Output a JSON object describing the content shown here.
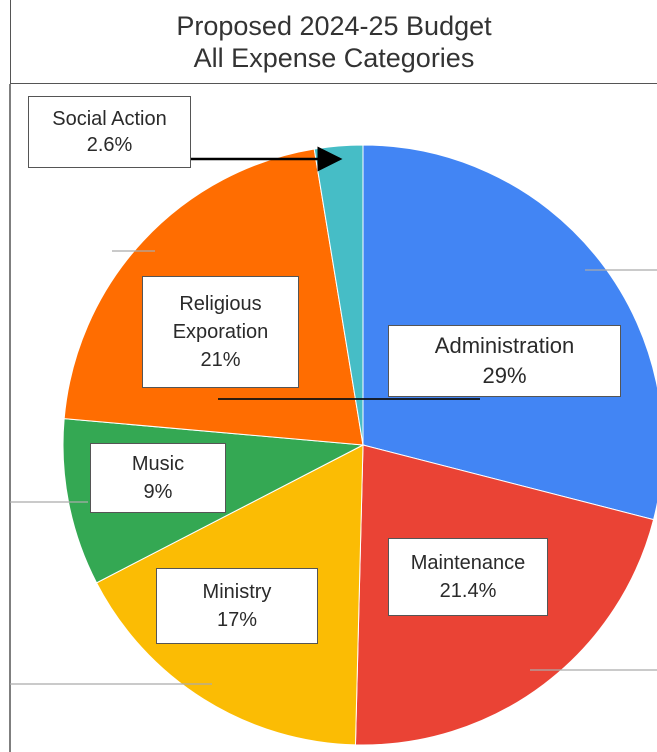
{
  "chart_data": {
    "type": "pie",
    "title": "Proposed 2024-25 Budget",
    "subtitle": "All Expense Categories",
    "slices": [
      {
        "label": "Administration",
        "value_label": "29%",
        "value": 29,
        "color": "#4285f4"
      },
      {
        "label": "Maintenance",
        "value_label": "21.4%",
        "value": 21.4,
        "color": "#ea4335"
      },
      {
        "label": "Ministry",
        "value_label": "17%",
        "value": 17,
        "color": "#fbbc04"
      },
      {
        "label": "Music",
        "value_label": "9%",
        "value": 9,
        "color": "#34a853"
      },
      {
        "label": "Religious\nExporation",
        "value_label": "21%",
        "value": 21,
        "color": "#ff6d01"
      },
      {
        "label": "Social Action",
        "value_label": "2.6%",
        "value": 2.6,
        "color": "#46bdc6"
      }
    ]
  }
}
